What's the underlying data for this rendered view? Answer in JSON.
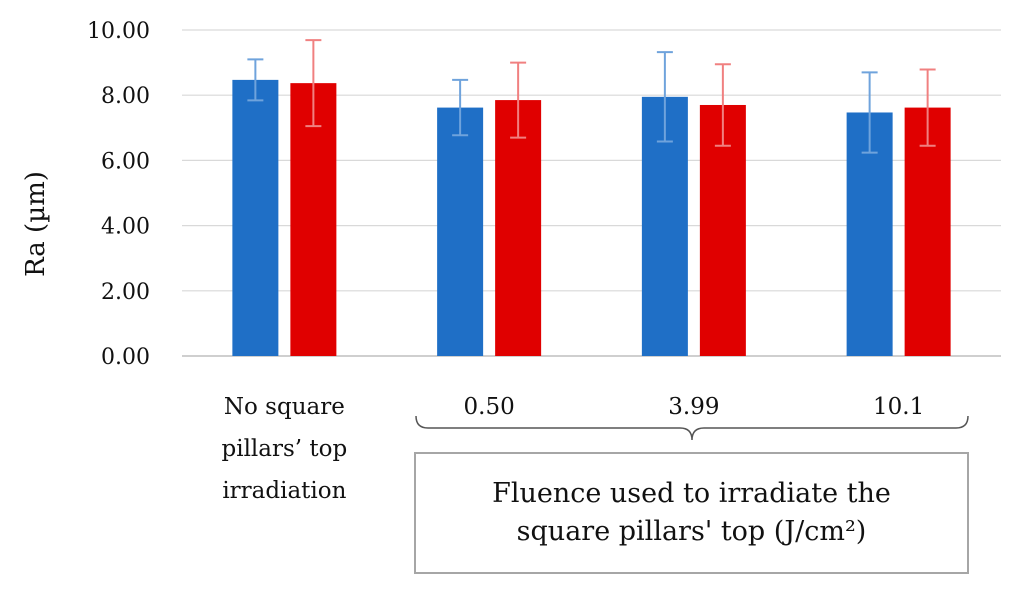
{
  "chart_data": {
    "type": "bar",
    "ylabel": "Ra (µm)",
    "ylim": [
      0,
      10
    ],
    "yticks": [
      "0.00",
      "2.00",
      "4.00",
      "6.00",
      "8.00",
      "10.00"
    ],
    "grid": true,
    "categories": [
      "No square pillars’ top irradiation",
      "0.50",
      "3.99",
      "10.1"
    ],
    "category_lines": [
      [
        "No square",
        "pillars’ top",
        "irradiation"
      ],
      [
        "0.50"
      ],
      [
        "3.99"
      ],
      [
        "10.1"
      ]
    ],
    "series": [
      {
        "color": "#1f6fc6",
        "error_color": "#6fa3dc",
        "values": [
          8.47,
          7.62,
          7.95,
          7.47
        ],
        "errors": [
          0.63,
          0.85,
          1.37,
          1.23
        ]
      },
      {
        "color": "#e00000",
        "error_color": "#f08080",
        "values": [
          8.37,
          7.85,
          7.7,
          7.62
        ],
        "errors": [
          1.32,
          1.15,
          1.25,
          1.17
        ]
      }
    ],
    "group_caption": [
      "Fluence used to irradiate the",
      "square pillars' top (J/cm²)"
    ]
  }
}
